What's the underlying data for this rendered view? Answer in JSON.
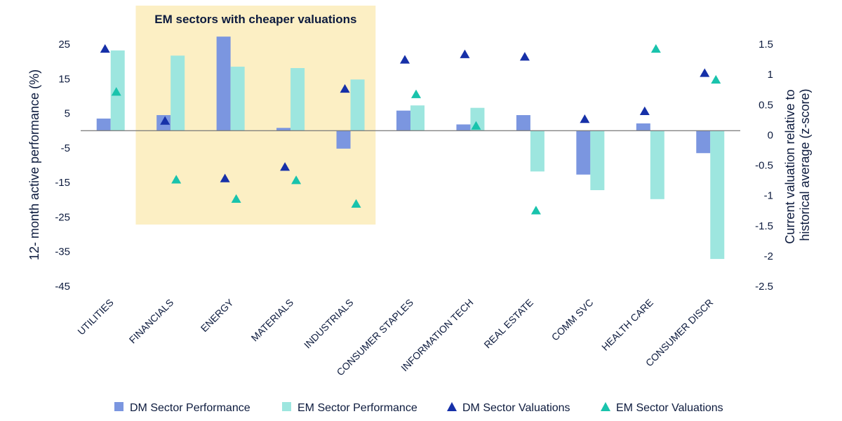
{
  "chart_data": {
    "type": "bar",
    "categories": [
      "UTILITIES",
      "FINANCIALS",
      "ENERGY",
      "MATERIALS",
      "INDUSTRIALS",
      "CONSUMER STAPLES",
      "INFORMATION TECH",
      "REAL ESTATE",
      "COMM SVC",
      "HEALTH CARE",
      "CONSUMER DISCR"
    ],
    "series": [
      {
        "name": "DM Sector Performance",
        "type": "bar",
        "axis": "left",
        "color": "#7b96e0",
        "values": [
          3.5,
          4.5,
          27.2,
          0.8,
          -5.2,
          5.8,
          1.8,
          4.5,
          -12.7,
          2.1,
          -6.5
        ]
      },
      {
        "name": "EM Sector Performance",
        "type": "bar",
        "axis": "left",
        "color": "#9de6df",
        "values": [
          23.2,
          21.7,
          18.5,
          18.1,
          14.8,
          7.3,
          6.6,
          -11.8,
          -17.2,
          -19.8,
          -37.1
        ]
      },
      {
        "name": "DM Sector Valuations",
        "type": "scatter",
        "axis": "right",
        "color": "#1630a8",
        "values": [
          1.42,
          0.23,
          -0.72,
          -0.53,
          0.76,
          1.24,
          1.33,
          1.29,
          0.26,
          0.39,
          1.02
        ]
      },
      {
        "name": "EM Sector Valuations",
        "type": "scatter",
        "axis": "right",
        "color": "#19c3ac",
        "values": [
          0.71,
          -0.74,
          -1.06,
          -0.75,
          -1.14,
          0.67,
          0.15,
          -1.25,
          null,
          1.42,
          0.91
        ]
      }
    ],
    "yticks_left": [
      "25",
      "15",
      "5",
      "-5",
      "-15",
      "-25",
      "-35",
      "-45"
    ],
    "yticks_right": [
      "1.5",
      "1",
      "0.5",
      "0",
      "-0.5",
      "-1",
      "-1.5",
      "-2",
      "-2.5"
    ],
    "ylim_left": [
      -45,
      25
    ],
    "ylim_right": [
      -2.5,
      1.5
    ],
    "ylabel_left": "12- month active performance (%)",
    "ylabel_right_line1": "Current valuation relative to",
    "ylabel_right_line2": "historical average (z-score)",
    "highlight": {
      "label": "EM sectors with cheaper valuations",
      "from_category": 1,
      "to_category": 4,
      "color": "#fcefc4"
    },
    "legend_position": "bottom",
    "grid": false
  }
}
